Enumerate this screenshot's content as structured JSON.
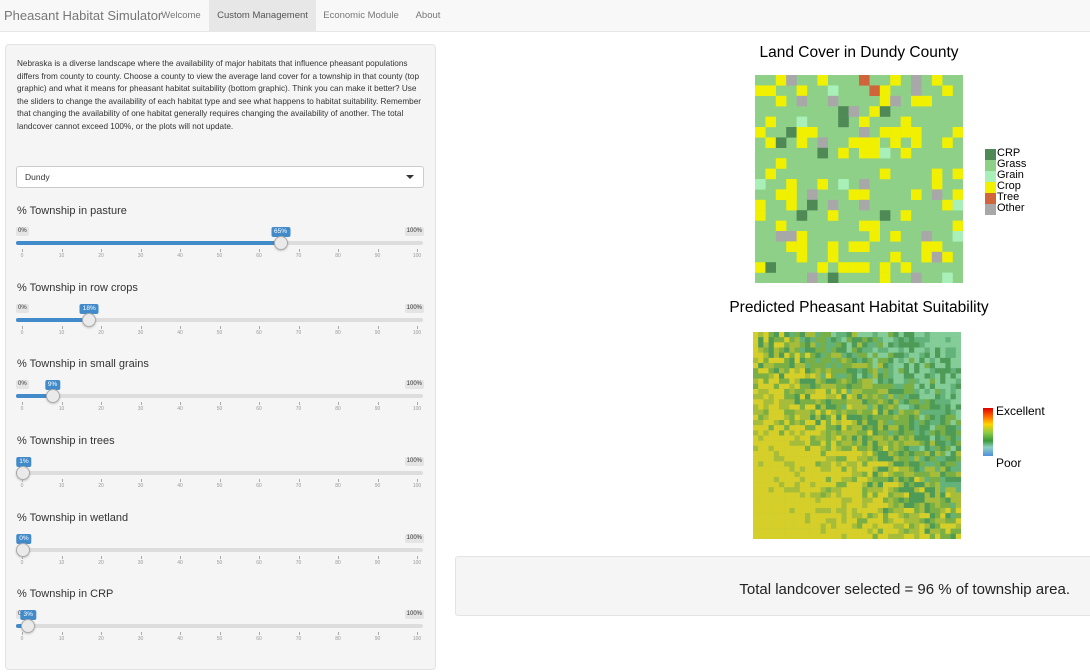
{
  "app": {
    "brand": "Pheasant Habitat Simulator",
    "tabs": [
      {
        "label": "Welcome",
        "active": false
      },
      {
        "label": "Custom Management",
        "active": true
      },
      {
        "label": "Economic Module",
        "active": false
      },
      {
        "label": "About",
        "active": false
      }
    ]
  },
  "sidebar": {
    "intro": "Nebraska is a diverse landscape where the availability of major habitats that influence pheasant populations differs from county to county. Choose a county to view the average land cover for a township in that county (top graphic) and what it means for pheasant habitat suitability (bottom graphic). Think you can make it better? Use the sliders to change the availability of each habitat type and see what happens to habitat suitability. Remember that changing the availability of one habitat generally requires changing the availability of another. The total landcover cannot exceed 100%, or the plots will not update.",
    "county_select": {
      "value": "Dundy"
    },
    "sliders": [
      {
        "label": "% Township in pasture",
        "value": 65,
        "value_label": "65%"
      },
      {
        "label": "% Township in row crops",
        "value": 18,
        "value_label": "18%"
      },
      {
        "label": "% Township in small grains",
        "value": 9,
        "value_label": "9%"
      },
      {
        "label": "% Township in trees",
        "value": 1,
        "value_label": "1%"
      },
      {
        "label": "% Township in wetland",
        "value": 0,
        "value_label": "0%"
      },
      {
        "label": "% Township in CRP",
        "value": 3,
        "value_label": "3%"
      }
    ],
    "slider_min_label": "0%",
    "slider_max_label": "100%",
    "ticks": [
      "0",
      "10",
      "20",
      "30",
      "40",
      "50",
      "60",
      "70",
      "80",
      "90",
      "100"
    ]
  },
  "landcover": {
    "title": "Land Cover in  Dundy County",
    "legend": [
      {
        "label": "CRP",
        "color": "#4f8a56"
      },
      {
        "label": "Grass",
        "color": "#8fd089"
      },
      {
        "label": "Grain",
        "color": "#a8f0b8"
      },
      {
        "label": "Crop",
        "color": "#f0f000"
      },
      {
        "label": "Tree",
        "color": "#d0643a"
      },
      {
        "label": "Other",
        "color": "#a8a8a8"
      }
    ]
  },
  "suitability": {
    "title": "Predicted Pheasant Habitat Suitability",
    "legend_high": "Excellent",
    "legend_low": "Poor"
  },
  "summary": {
    "text": "Total landcover selected = 96 % of township area."
  }
}
